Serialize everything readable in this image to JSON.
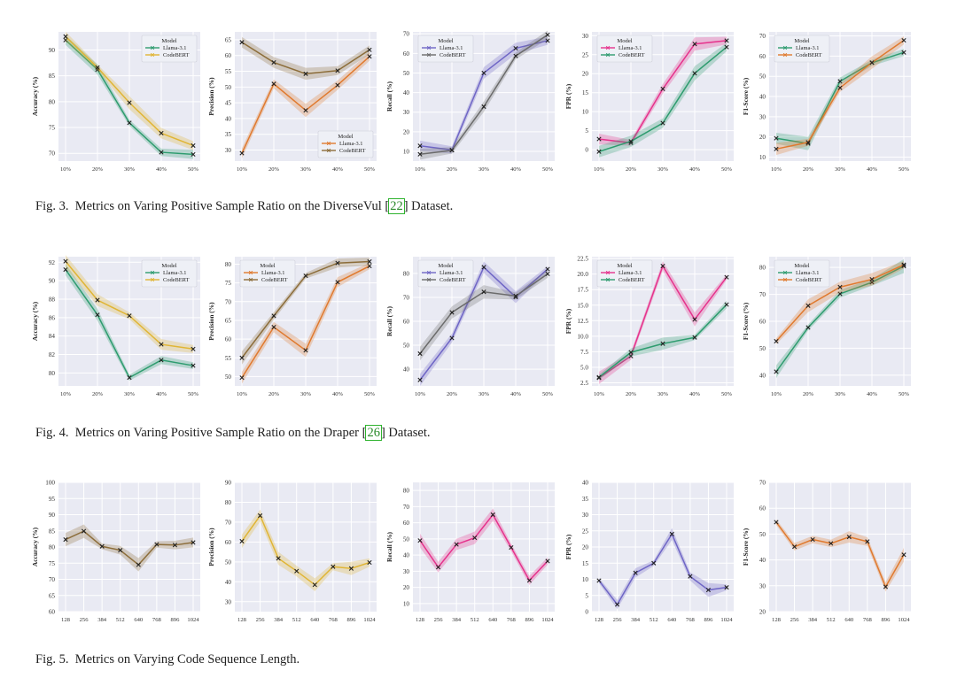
{
  "captions": [
    {
      "prefix": "Fig. 3.",
      "text_before": "Metrics on Varing Positive Sample Ratio on the DiverseVul [",
      "ref": "22",
      "text_after": "] Dataset."
    },
    {
      "prefix": "Fig. 4.",
      "text_before": "Metrics on Varing Positive Sample Ratio on the Draper [",
      "ref": "26",
      "text_after": "] Dataset."
    },
    {
      "prefix": "Fig. 5.",
      "text_before": "Metrics on Varying Code Sequence Length.",
      "ref": "",
      "text_after": ""
    }
  ],
  "colors": {
    "plot_bg": "#e9eaf3",
    "grid": "#ffffff",
    "green": "#2e9c6f",
    "yellow": "#e0b535",
    "orange": "#e07a2f",
    "brown": "#8c6d3a",
    "purple": "#6f66c6",
    "gray": "#6b6b6b",
    "pink": "#e6328c",
    "marker": "#222222"
  },
  "chart_data": [
    {
      "id": "f3-acc",
      "type": "line",
      "ylabel": "Accuracy (%)",
      "categories": [
        "10%",
        "20%",
        "30%",
        "40%",
        "50%"
      ],
      "ylim": [
        68.5,
        93.5
      ],
      "yticks": [
        70,
        75,
        80,
        85,
        90
      ],
      "ytick_labels": [
        "70",
        "75",
        "80",
        "85",
        "90"
      ],
      "legend": {
        "title": "Model",
        "position": "top-right"
      },
      "series": [
        {
          "name": "Llama-3.1",
          "color": "#2e9c6f",
          "values": [
            91.9,
            86.2,
            75.9,
            70.2,
            69.8
          ]
        },
        {
          "name": "CodeBERT",
          "color": "#e0b535",
          "values": [
            92.6,
            86.6,
            79.8,
            73.9,
            71.5
          ]
        }
      ]
    },
    {
      "id": "f3-prec",
      "type": "line",
      "ylabel": "Precision (%)",
      "categories": [
        "10%",
        "20%",
        "30%",
        "40%",
        "50%"
      ],
      "ylim": [
        26.5,
        67.5
      ],
      "yticks": [
        30,
        35,
        40,
        45,
        50,
        55,
        60,
        65
      ],
      "ytick_labels": [
        "30",
        "35",
        "40",
        "45",
        "50",
        "55",
        "60",
        "65"
      ],
      "legend": {
        "title": "Model",
        "position": "bottom-right"
      },
      "series": [
        {
          "name": "Llama-3.1",
          "color": "#e07a2f",
          "values": [
            29,
            51,
            42.6,
            50.6,
            59.7
          ]
        },
        {
          "name": "CodeBERT",
          "color": "#8c6d3a",
          "values": [
            64.2,
            57.8,
            54.2,
            55.2,
            61.8
          ]
        }
      ]
    },
    {
      "id": "f3-rec",
      "type": "line",
      "ylabel": "Recall (%)",
      "categories": [
        "10%",
        "20%",
        "30%",
        "40%",
        "50%"
      ],
      "ylim": [
        5,
        71
      ],
      "yticks": [
        10,
        20,
        30,
        40,
        50,
        60,
        70
      ],
      "ytick_labels": [
        "10",
        "20",
        "30",
        "40",
        "50",
        "60",
        "70"
      ],
      "legend": {
        "title": "Model",
        "position": "top-left"
      },
      "series": [
        {
          "name": "Llama-3.1",
          "color": "#6f66c6",
          "values": [
            12.8,
            10.7,
            50,
            62.6,
            66.5
          ]
        },
        {
          "name": "CodeBERT",
          "color": "#6b6b6b",
          "values": [
            8.5,
            10.5,
            32.8,
            58.7,
            69.5
          ]
        }
      ]
    },
    {
      "id": "f3-fpr",
      "type": "line",
      "ylabel": "FPR (%)",
      "categories": [
        "10%",
        "20%",
        "30%",
        "40%",
        "50%"
      ],
      "ylim": [
        -3,
        31
      ],
      "yticks": [
        0,
        5,
        10,
        15,
        20,
        25,
        30
      ],
      "ytick_labels": [
        "0",
        "5",
        "10",
        "15",
        "20",
        "25",
        "30"
      ],
      "legend": {
        "title": "Model",
        "position": "top-left"
      },
      "series": [
        {
          "name": "Llama-3.1",
          "color": "#e6328c",
          "values": [
            2.8,
            1.8,
            16,
            27.8,
            28.7
          ]
        },
        {
          "name": "CodeBERT",
          "color": "#2e9c6f",
          "values": [
            -0.5,
            2.2,
            7,
            20.1,
            27
          ]
        }
      ]
    },
    {
      "id": "f3-f1",
      "type": "line",
      "ylabel": "F1-Score (%)",
      "categories": [
        "10%",
        "20%",
        "30%",
        "40%",
        "50%"
      ],
      "ylim": [
        8,
        72
      ],
      "yticks": [
        10,
        20,
        30,
        40,
        50,
        60,
        70
      ],
      "ytick_labels": [
        "10",
        "20",
        "30",
        "40",
        "50",
        "60",
        "70"
      ],
      "legend": {
        "title": "Model",
        "position": "top-left"
      },
      "series": [
        {
          "name": "Llama-3.1",
          "color": "#2e9c6f",
          "values": [
            19.3,
            16.7,
            47.5,
            56.7,
            61.8
          ]
        },
        {
          "name": "CodeBERT",
          "color": "#e07a2f",
          "values": [
            14,
            17.3,
            44.3,
            56.8,
            67.8
          ]
        }
      ]
    },
    {
      "id": "f4-acc",
      "type": "line",
      "ylabel": "Accuracy (%)",
      "categories": [
        "10%",
        "20%",
        "30%",
        "40%",
        "50%"
      ],
      "ylim": [
        78.6,
        92.6
      ],
      "yticks": [
        80,
        82,
        84,
        86,
        88,
        90,
        92
      ],
      "ytick_labels": [
        "80",
        "82",
        "84",
        "86",
        "88",
        "90",
        "92"
      ],
      "legend": {
        "title": "Model",
        "position": "top-right"
      },
      "series": [
        {
          "name": "Llama-3.1",
          "color": "#2e9c6f",
          "values": [
            91.2,
            86.3,
            79.5,
            81.4,
            80.8
          ]
        },
        {
          "name": "CodeBERT",
          "color": "#e0b535",
          "values": [
            92.1,
            87.9,
            86.2,
            83.1,
            82.6
          ]
        }
      ]
    },
    {
      "id": "f4-prec",
      "type": "line",
      "ylabel": "Precision (%)",
      "categories": [
        "10%",
        "20%",
        "30%",
        "40%",
        "50%"
      ],
      "ylim": [
        47.5,
        82
      ],
      "yticks": [
        50,
        55,
        60,
        65,
        70,
        75,
        80
      ],
      "ytick_labels": [
        "50",
        "55",
        "60",
        "65",
        "70",
        "75",
        "80"
      ],
      "legend": {
        "title": "Model",
        "position": "top-left"
      },
      "series": [
        {
          "name": "Llama-3.1",
          "color": "#e07a2f",
          "values": [
            49.7,
            63.2,
            57,
            75.2,
            79.5
          ]
        },
        {
          "name": "CodeBERT",
          "color": "#8c6d3a",
          "values": [
            55,
            66.2,
            76.9,
            80.3,
            80.7
          ]
        }
      ]
    },
    {
      "id": "f4-rec",
      "type": "line",
      "ylabel": "Recall (%)",
      "categories": [
        "10%",
        "20%",
        "30%",
        "40%",
        "50%"
      ],
      "ylim": [
        33,
        87
      ],
      "yticks": [
        40,
        50,
        60,
        70,
        80
      ],
      "ytick_labels": [
        "40",
        "50",
        "60",
        "70",
        "80"
      ],
      "legend": {
        "title": "Model",
        "position": "top-left"
      },
      "series": [
        {
          "name": "Llama-3.1",
          "color": "#6f66c6",
          "values": [
            35.5,
            53,
            82.6,
            70.1,
            81.8
          ]
        },
        {
          "name": "CodeBERT",
          "color": "#6b6b6b",
          "values": [
            46.5,
            63.7,
            72.3,
            70.6,
            79.8
          ]
        }
      ]
    },
    {
      "id": "f4-fpr",
      "type": "line",
      "ylabel": "FPR (%)",
      "categories": [
        "10%",
        "20%",
        "30%",
        "40%",
        "50%"
      ],
      "ylim": [
        2,
        22.8
      ],
      "yticks": [
        2.5,
        5,
        7.5,
        10,
        12.5,
        15,
        17.5,
        20,
        22.5
      ],
      "ytick_labels": [
        "2.5",
        "5.0",
        "7.5",
        "10.0",
        "12.5",
        "15.0",
        "17.5",
        "20.0",
        "22.5"
      ],
      "legend": {
        "title": "Model",
        "position": "top-left"
      },
      "series": [
        {
          "name": "Llama-3.1",
          "color": "#e6328c",
          "values": [
            3.3,
            6.8,
            21.3,
            12.7,
            19.5
          ]
        },
        {
          "name": "CodeBERT",
          "color": "#2e9c6f",
          "values": [
            3.4,
            7.4,
            8.8,
            9.8,
            15.1
          ]
        }
      ]
    },
    {
      "id": "f4-f1",
      "type": "line",
      "ylabel": "F1-Score (%)",
      "categories": [
        "10%",
        "20%",
        "30%",
        "40%",
        "50%"
      ],
      "ylim": [
        36,
        84
      ],
      "yticks": [
        40,
        50,
        60,
        70,
        80
      ],
      "ytick_labels": [
        "40",
        "50",
        "60",
        "70",
        "80"
      ],
      "legend": {
        "title": "Model",
        "position": "top-left"
      },
      "series": [
        {
          "name": "Llama-3.1",
          "color": "#2e9c6f",
          "values": [
            41.3,
            57.7,
            70.2,
            74.5,
            80.5
          ]
        },
        {
          "name": "CodeBERT",
          "color": "#e07a2f",
          "values": [
            52.6,
            65.8,
            72.7,
            75.6,
            81
          ]
        }
      ]
    },
    {
      "id": "f5-acc",
      "type": "line",
      "ylabel": "Accuracy (%)",
      "categories": [
        "128",
        "256",
        "384",
        "512",
        "640",
        "768",
        "896",
        "1024"
      ],
      "ylim": [
        60,
        100
      ],
      "yticks": [
        60,
        65,
        70,
        75,
        80,
        85,
        90,
        95,
        100
      ],
      "ytick_labels": [
        "60",
        "65",
        "70",
        "75",
        "80",
        "85",
        "90",
        "95",
        "100"
      ],
      "series": [
        {
          "color": "#8c6d3a",
          "values": [
            82.3,
            84.9,
            80.2,
            79,
            74.5,
            80.8,
            80.6,
            81.4
          ]
        }
      ]
    },
    {
      "id": "f5-prec",
      "type": "line",
      "ylabel": "Precision (%)",
      "categories": [
        "128",
        "256",
        "384",
        "512",
        "640",
        "768",
        "896",
        "1024"
      ],
      "ylim": [
        25,
        90
      ],
      "yticks": [
        30,
        40,
        50,
        60,
        70,
        80,
        90
      ],
      "ytick_labels": [
        "30",
        "40",
        "50",
        "60",
        "70",
        "80",
        "90"
      ],
      "series": [
        {
          "color": "#e0b535",
          "values": [
            60.4,
            73.3,
            51.8,
            45.4,
            38.5,
            47.6,
            46.7,
            49.7
          ]
        }
      ]
    },
    {
      "id": "f5-rec",
      "type": "line",
      "ylabel": "Recall (%)",
      "categories": [
        "128",
        "256",
        "384",
        "512",
        "640",
        "768",
        "896",
        "1024"
      ],
      "ylim": [
        5,
        85
      ],
      "yticks": [
        10,
        20,
        30,
        40,
        50,
        60,
        70,
        80
      ],
      "ytick_labels": [
        "10",
        "20",
        "30",
        "40",
        "50",
        "60",
        "70",
        "80"
      ],
      "series": [
        {
          "color": "#e6328c",
          "values": [
            49,
            32.5,
            46.6,
            50.7,
            65,
            44.7,
            24.3,
            36.3
          ]
        }
      ]
    },
    {
      "id": "f5-fpr",
      "type": "line",
      "ylabel": "FPR (%)",
      "categories": [
        "128",
        "256",
        "384",
        "512",
        "640",
        "768",
        "896",
        "1024"
      ],
      "ylim": [
        0,
        40
      ],
      "yticks": [
        0,
        5,
        10,
        15,
        20,
        25,
        30,
        35,
        40
      ],
      "ytick_labels": [
        "0",
        "5",
        "10",
        "15",
        "20",
        "25",
        "30",
        "35",
        "40"
      ],
      "series": [
        {
          "color": "#6f66c6",
          "values": [
            9.6,
            2.2,
            12,
            15,
            24,
            10.9,
            6.7,
            7.5
          ]
        }
      ]
    },
    {
      "id": "f5-f1",
      "type": "line",
      "ylabel": "F1-Score (%)",
      "categories": [
        "128",
        "256",
        "384",
        "512",
        "640",
        "768",
        "896",
        "1024"
      ],
      "ylim": [
        20,
        70
      ],
      "yticks": [
        20,
        30,
        40,
        50,
        60,
        70
      ],
      "ytick_labels": [
        "20",
        "30",
        "40",
        "50",
        "60",
        "70"
      ],
      "series": [
        {
          "color": "#e07a2f",
          "values": [
            54.6,
            45.1,
            47.9,
            46.4,
            48.9,
            47.1,
            29.6,
            42
          ]
        }
      ]
    }
  ]
}
